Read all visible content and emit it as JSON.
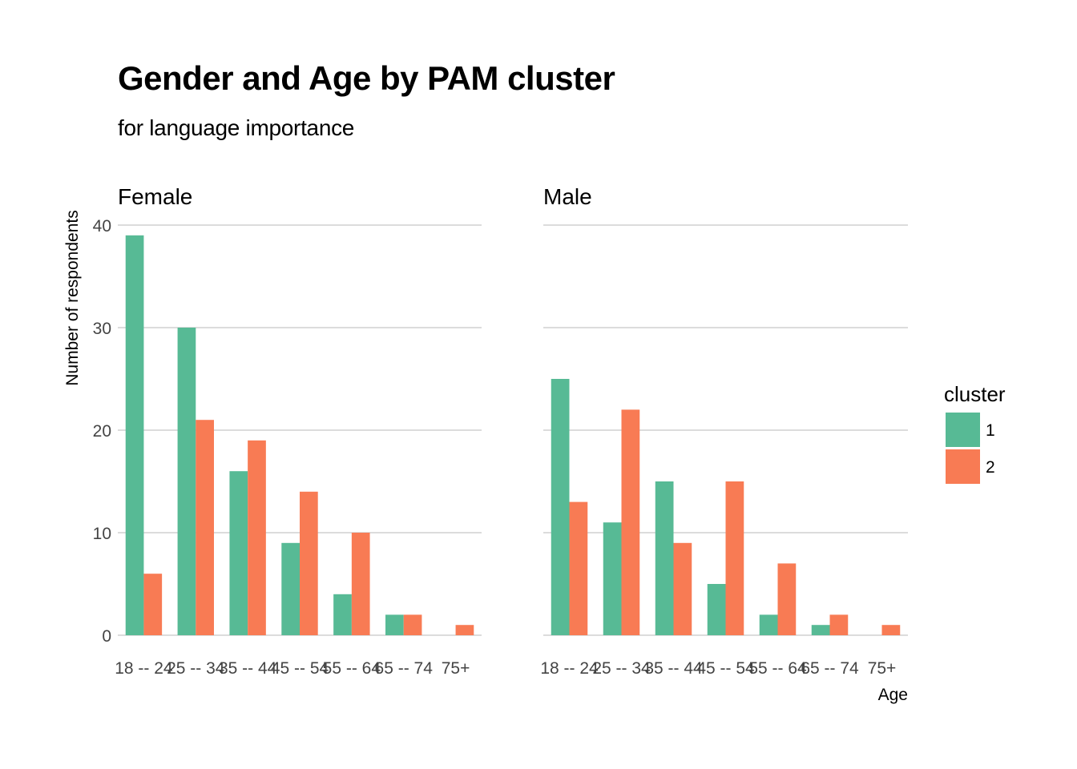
{
  "chart_data": {
    "type": "bar",
    "title": "Gender and Age by PAM cluster",
    "subtitle": "for language importance",
    "xlabel": "Age",
    "ylabel": "Number of respondents",
    "categories": [
      "18 -- 24",
      "25 -- 34",
      "35 -- 44",
      "45 -- 54",
      "55 -- 64",
      "65 -- 74",
      "75+"
    ],
    "ylim": [
      0,
      40
    ],
    "yticks": [
      0,
      10,
      20,
      30,
      40
    ],
    "grid": true,
    "legend": {
      "title": "cluster",
      "placement": "right",
      "entries": [
        {
          "label": "1",
          "color": "#57BA95"
        },
        {
          "label": "2",
          "color": "#F87B54"
        }
      ]
    },
    "facets": [
      {
        "label": "Female",
        "series": [
          {
            "name": "1",
            "values": [
              39,
              30,
              16,
              9,
              4,
              2,
              0
            ]
          },
          {
            "name": "2",
            "values": [
              6,
              21,
              19,
              14,
              10,
              2,
              1
            ]
          }
        ]
      },
      {
        "label": "Male",
        "series": [
          {
            "name": "1",
            "values": [
              25,
              11,
              15,
              5,
              2,
              1,
              0
            ]
          },
          {
            "name": "2",
            "values": [
              13,
              22,
              9,
              15,
              7,
              2,
              1
            ]
          }
        ]
      }
    ]
  }
}
